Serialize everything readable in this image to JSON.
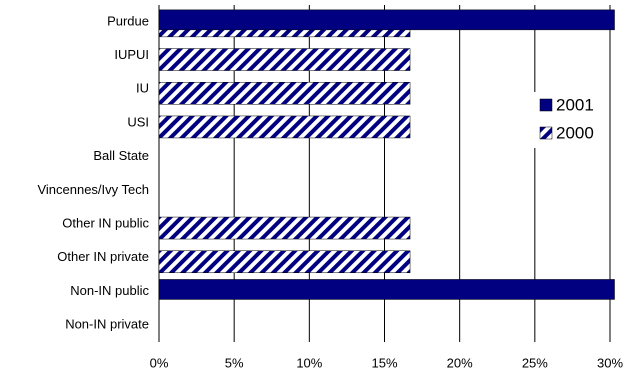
{
  "chart_data": {
    "type": "hbar",
    "categories": [
      "Purdue",
      "IUPUI",
      "IU",
      "USI",
      "Ball State",
      "Vincennes/Ivy Tech",
      "Other IN public",
      "Other IN private",
      "Non-IN public",
      "Non-IN private"
    ],
    "series": [
      {
        "name": "2001",
        "color": "#000080",
        "values": [
          30.3,
          0,
          0,
          0,
          0,
          0,
          0,
          0,
          30.3,
          0
        ]
      },
      {
        "name": "2000",
        "color": "#000080",
        "pattern": "hatch",
        "values": [
          16.7,
          16.7,
          16.7,
          16.7,
          0,
          0,
          16.7,
          16.7,
          0,
          0
        ]
      }
    ],
    "xlim": [
      0,
      30
    ],
    "xticks": [
      {
        "value": 0,
        "label": "0%"
      },
      {
        "value": 5,
        "label": "5%"
      },
      {
        "value": 10,
        "label": "10%"
      },
      {
        "value": 15,
        "label": "15%"
      },
      {
        "value": 20,
        "label": "20%"
      },
      {
        "value": 25,
        "label": "25%"
      },
      {
        "value": 30,
        "label": "30%"
      }
    ],
    "grid": true,
    "legend": "right"
  }
}
